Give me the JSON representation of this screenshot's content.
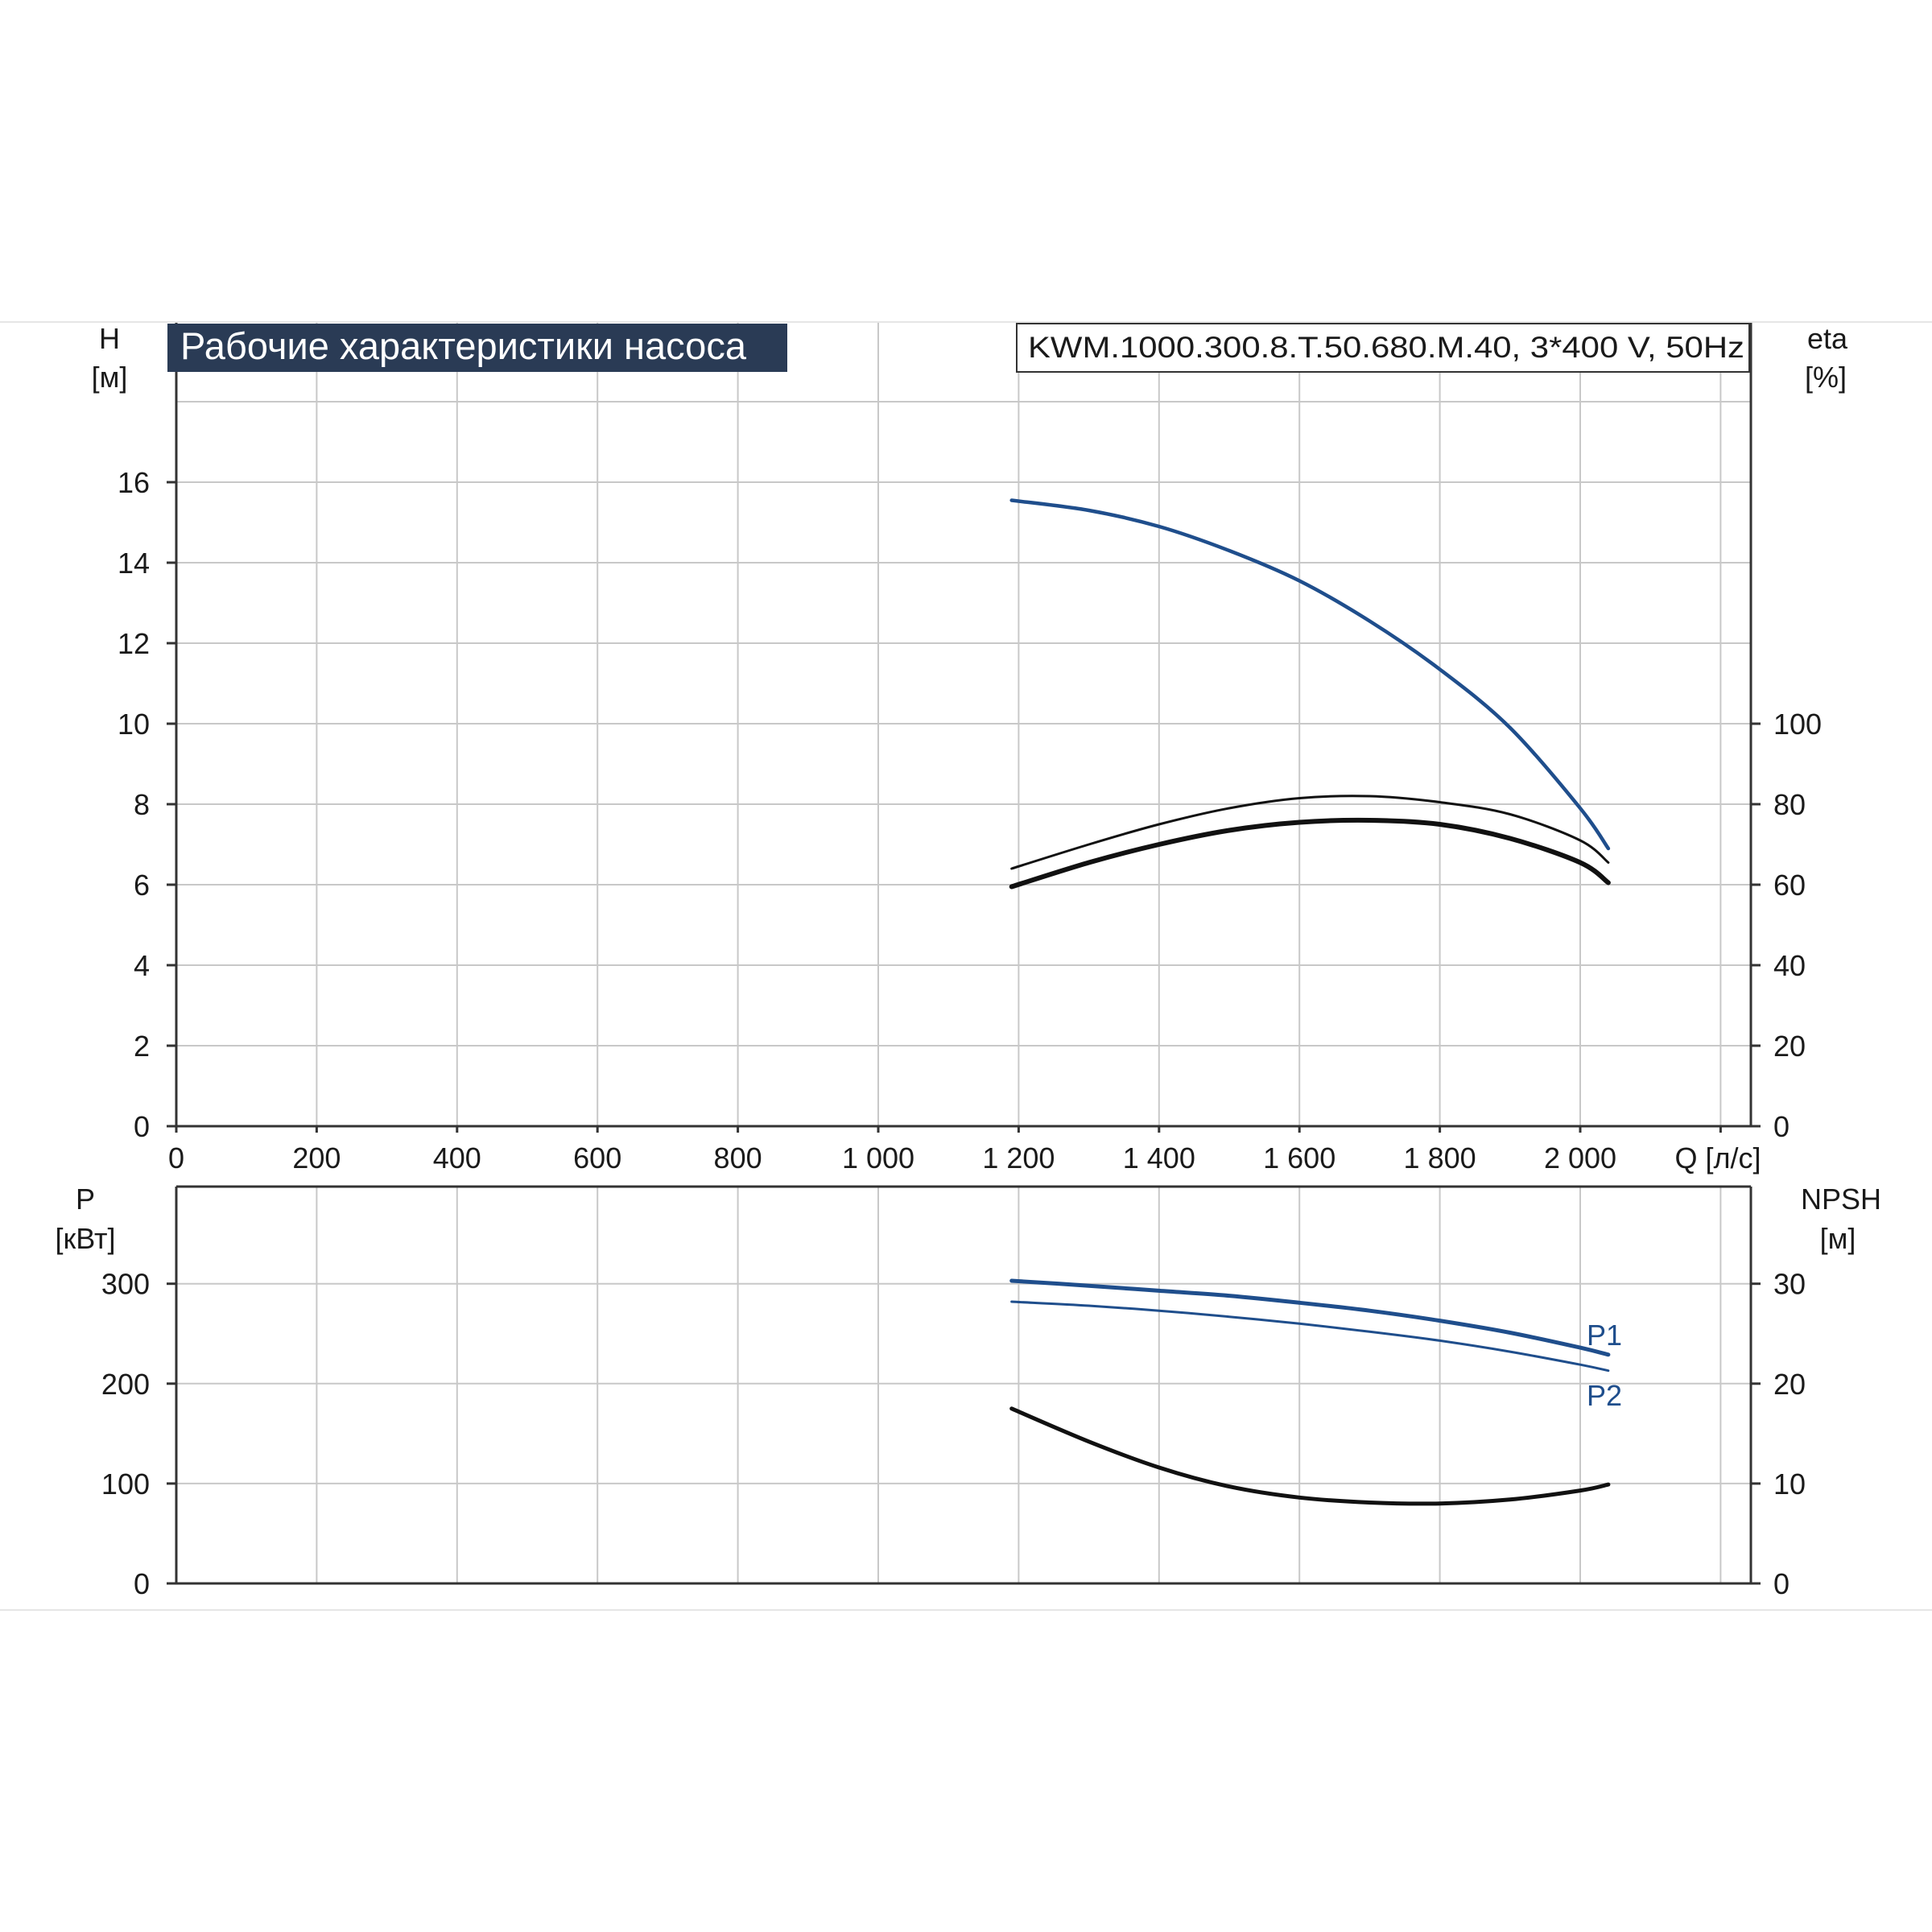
{
  "title": "Рабочие характеристики насоса",
  "model": "KWM.1000.300.8.T.50.680.M.40, 3*400 V, 50Hz",
  "colors": {
    "accent": "#1f4e8c",
    "title_bg": "#2a3b55",
    "grid": "#c8c8c8",
    "curve_dark": "#111111"
  },
  "chart_data": [
    {
      "type": "line",
      "title": "Рабочие характеристики насоса",
      "xlabel": "Q [л/с]",
      "ylabel_left": "H\n[м]",
      "ylabel_right": "eta\n[%]",
      "xlim": [
        0,
        2500
      ],
      "ylim_left": [
        0,
        18
      ],
      "ylim_right": [
        0,
        100
      ],
      "x_ticks": [
        "0",
        "200",
        "400",
        "600",
        "800",
        "1 000",
        "1 200",
        "1 400",
        "1 600",
        "1 800",
        "2 000"
      ],
      "y_ticks_left": [
        "0",
        "2",
        "4",
        "6",
        "8",
        "10",
        "12",
        "14",
        "16"
      ],
      "y_ticks_right": [
        "0",
        "20",
        "40",
        "60",
        "80",
        "100"
      ],
      "grid": true,
      "series": [
        {
          "axis": "left",
          "color": "#1f4e8c",
          "width": 4.5,
          "x": [
            1190,
            1300,
            1400,
            1500,
            1600,
            1700,
            1800,
            1900,
            2000,
            2040
          ],
          "y": [
            15.55,
            15.3,
            14.9,
            14.3,
            13.55,
            12.55,
            11.35,
            9.9,
            7.9,
            6.9
          ]
        },
        {
          "axis": "right",
          "color": "#111111",
          "width": 3,
          "x": [
            1190,
            1300,
            1400,
            1500,
            1600,
            1700,
            1800,
            1900,
            2000,
            2040
          ],
          "y": [
            64,
            70,
            75,
            79,
            81.5,
            82,
            80.5,
            77.5,
            71,
            65.5
          ]
        },
        {
          "axis": "right",
          "color": "#111111",
          "width": 6,
          "x": [
            1190,
            1300,
            1400,
            1500,
            1600,
            1700,
            1800,
            1900,
            2000,
            2040
          ],
          "y": [
            59.5,
            65.5,
            70,
            73.5,
            75.5,
            76,
            75,
            71.5,
            65.5,
            60.5
          ]
        }
      ]
    },
    {
      "type": "line",
      "xlabel": "Q [л/с]",
      "ylabel_left": "P\n[кВт]",
      "ylabel_right": "NPSH\n[м]",
      "xlim": [
        0,
        2500
      ],
      "ylim_left": [
        0,
        400
      ],
      "ylim_right": [
        0,
        40
      ],
      "y_ticks_left": [
        "0",
        "100",
        "200",
        "300"
      ],
      "y_ticks_right": [
        "0",
        "10",
        "20",
        "30"
      ],
      "grid": true,
      "series": [
        {
          "name": "P1",
          "axis": "left",
          "color": "#1f4e8c",
          "width": 5,
          "x": [
            1190,
            1300,
            1400,
            1500,
            1600,
            1700,
            1800,
            1900,
            2000,
            2040
          ],
          "y": [
            303,
            298,
            293,
            288,
            281,
            273,
            263,
            251,
            236,
            229
          ]
        },
        {
          "name": "P2",
          "axis": "left",
          "color": "#1f4e8c",
          "width": 3,
          "x": [
            1190,
            1300,
            1400,
            1500,
            1600,
            1700,
            1800,
            1900,
            2000,
            2040
          ],
          "y": [
            282,
            278,
            273,
            267,
            260,
            252,
            243,
            232,
            219,
            213
          ]
        },
        {
          "axis": "right",
          "color": "#111111",
          "width": 5,
          "x": [
            1190,
            1300,
            1400,
            1500,
            1600,
            1700,
            1800,
            1900,
            2000,
            2040
          ],
          "y": [
            17.5,
            14.2,
            11.6,
            9.7,
            8.6,
            8.1,
            8.0,
            8.4,
            9.3,
            9.9
          ]
        }
      ]
    }
  ]
}
